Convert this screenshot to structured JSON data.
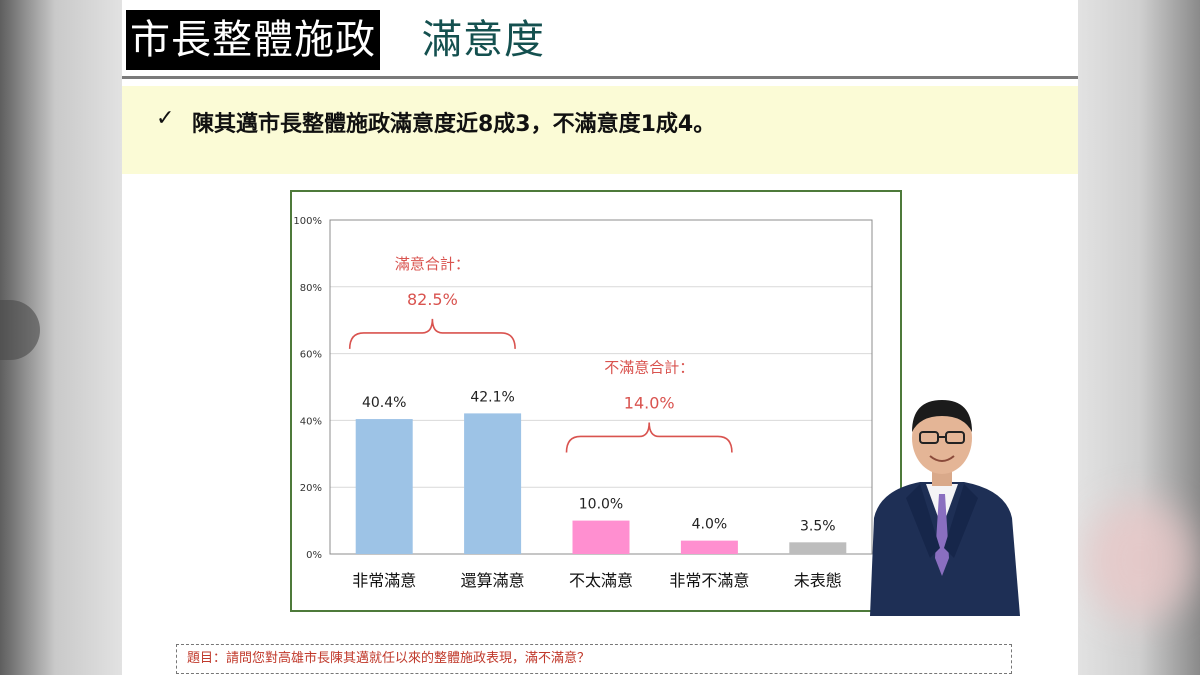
{
  "slide": {
    "title_black": "市長整體施政",
    "title_teal": "滿意度",
    "check": "✓",
    "summary": "陳其邁市長整體施政滿意度近8成3，不滿意度1成4。",
    "question_note": "題目：請問您對高雄市長陳其邁就任以來的整體施政表現，滿不滿意？"
  },
  "chart_data": {
    "type": "bar",
    "categories": [
      "非常滿意",
      "還算滿意",
      "不太滿意",
      "非常不滿意",
      "未表態"
    ],
    "values": [
      40.4,
      42.1,
      10.0,
      4.0,
      3.5
    ],
    "value_labels": [
      "40.4%",
      "42.1%",
      "10.0%",
      "4.0%",
      "3.5%"
    ],
    "bar_colors": [
      "#9dc3e6",
      "#9dc3e6",
      "#ff8fd0",
      "#ff8fd0",
      "#bdbdbd"
    ],
    "ylim": [
      0,
      100
    ],
    "yticks": [
      0,
      20,
      40,
      60,
      80,
      100
    ],
    "ytick_labels": [
      "0%",
      "20%",
      "40%",
      "60%",
      "80%",
      "100%"
    ],
    "grid": true,
    "annotations": [
      {
        "label": "滿意合計：",
        "value": "82.5%",
        "span": [
          0,
          1
        ],
        "color": "#d9534f",
        "y": 62
      },
      {
        "label": "不滿意合計：",
        "value": "14.0%",
        "span": [
          2,
          3
        ],
        "color": "#d9534f",
        "y": 31
      }
    ]
  }
}
